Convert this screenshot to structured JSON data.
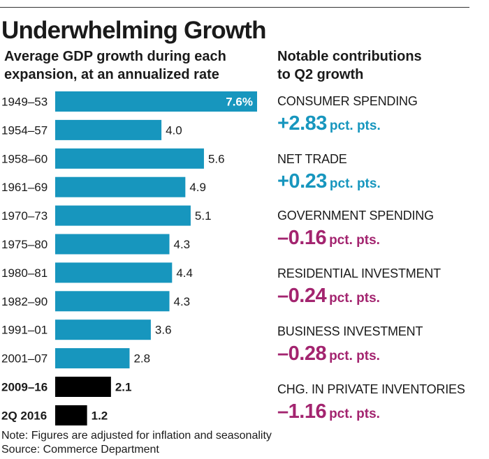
{
  "title": "Underwhelming Growth",
  "left_subtitle": [
    "Average GDP growth during each",
    "expansion, at an annualized rate"
  ],
  "right_subtitle": [
    "Notable contributions",
    "to Q2 growth"
  ],
  "note": "Note: Figures are adjusted for inflation and seasonality",
  "source": "Source: Commerce Department",
  "colors": {
    "bar": "#1796be",
    "highlight": "#000000",
    "positive": "#1796be",
    "negative": "#a3246f"
  },
  "chart_data": {
    "type": "bar",
    "orientation": "horizontal",
    "title": "",
    "xlabel": "",
    "ylabel": "",
    "xlim": [
      0,
      7.6
    ],
    "grid": false,
    "categories": [
      "1949–53",
      "1954–57",
      "1958–60",
      "1961–69",
      "1970–73",
      "1975–80",
      "1980–81",
      "1982–90",
      "1991–01",
      "2001–07",
      "2009–16",
      "2Q 2016"
    ],
    "values": [
      7.6,
      4.0,
      5.6,
      4.9,
      5.1,
      4.3,
      4.4,
      4.3,
      3.6,
      2.8,
      2.1,
      1.2
    ],
    "labels": [
      "7.6%",
      "4.0",
      "5.6",
      "4.9",
      "5.1",
      "4.3",
      "4.4",
      "4.3",
      "3.6",
      "2.8",
      "2.1",
      "1.2"
    ],
    "highlighted": [
      "2009–16",
      "2Q 2016"
    ]
  },
  "contributions": [
    {
      "label": "CONSUMER SPENDING",
      "value": "+2.83",
      "unit": "pct. pts.",
      "sign": "positive"
    },
    {
      "label": "NET TRADE",
      "value": "+0.23",
      "unit": "pct. pts.",
      "sign": "positive"
    },
    {
      "label": "GOVERNMENT SPENDING",
      "value": "–0.16",
      "unit": "pct. pts.",
      "sign": "negative"
    },
    {
      "label": "RESIDENTIAL INVESTMENT",
      "value": "–0.24",
      "unit": "pct. pts.",
      "sign": "negative"
    },
    {
      "label": "BUSINESS INVESTMENT",
      "value": "–0.28",
      "unit": "pct. pts.",
      "sign": "negative"
    },
    {
      "label": "CHG. IN PRIVATE INVENTORIES",
      "value": "–1.16",
      "unit": "pct. pts.",
      "sign": "negative"
    }
  ]
}
